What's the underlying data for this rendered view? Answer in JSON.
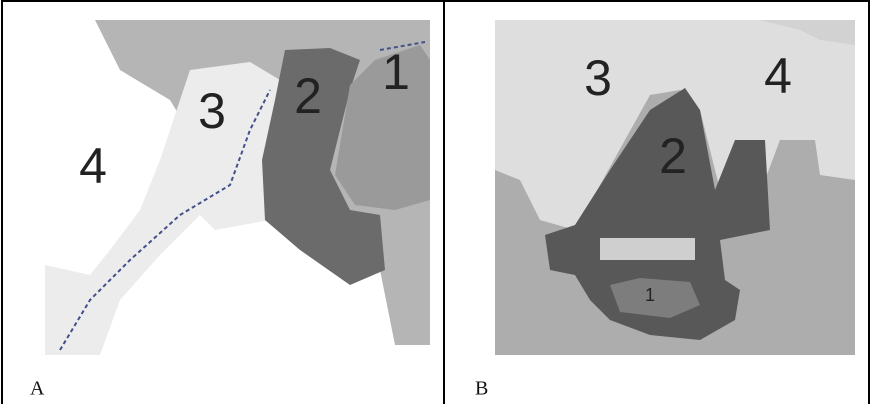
{
  "panels": [
    {
      "label": "A",
      "regions": [
        "4",
        "3",
        "2",
        "1"
      ]
    },
    {
      "label": "B",
      "regions": [
        "3",
        "4",
        "2",
        "1"
      ]
    }
  ]
}
